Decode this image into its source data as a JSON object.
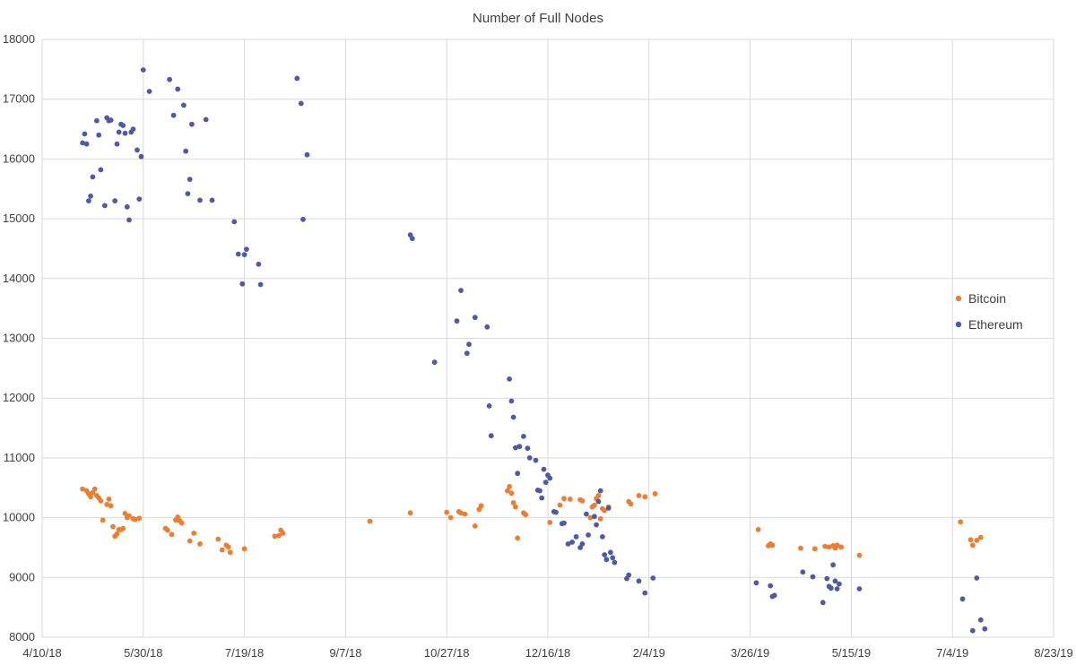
{
  "chart_data": {
    "type": "scatter",
    "title": "Number of Full Nodes",
    "xlabel": "",
    "ylabel": "",
    "x_ticks": [
      "4/10/18",
      "5/30/18",
      "7/19/18",
      "9/7/18",
      "10/27/18",
      "12/16/18",
      "2/4/19",
      "3/26/19",
      "5/15/19",
      "7/4/19",
      "8/23/19"
    ],
    "xlim": [
      "2018-04-10",
      "2019-08-23"
    ],
    "y_ticks": [
      8000,
      9000,
      10000,
      11000,
      12000,
      13000,
      14000,
      15000,
      16000,
      17000,
      18000
    ],
    "ylim": [
      8000,
      18000
    ],
    "grid": true,
    "legend_position": "right",
    "series": [
      {
        "name": "Bitcoin",
        "color": "#ED7D31",
        "points": [
          [
            "2018-04-30",
            10480
          ],
          [
            "2018-05-02",
            10450
          ],
          [
            "2018-05-03",
            10400
          ],
          [
            "2018-05-04",
            10350
          ],
          [
            "2018-05-05",
            10420
          ],
          [
            "2018-05-06",
            10480
          ],
          [
            "2018-05-07",
            10370
          ],
          [
            "2018-05-08",
            10330
          ],
          [
            "2018-05-09",
            10280
          ],
          [
            "2018-05-10",
            9960
          ],
          [
            "2018-05-12",
            10220
          ],
          [
            "2018-05-13",
            10310
          ],
          [
            "2018-05-14",
            10200
          ],
          [
            "2018-05-15",
            9850
          ],
          [
            "2018-05-16",
            9690
          ],
          [
            "2018-05-17",
            9730
          ],
          [
            "2018-05-18",
            9800
          ],
          [
            "2018-05-19",
            9800
          ],
          [
            "2018-05-20",
            9820
          ],
          [
            "2018-05-21",
            10070
          ],
          [
            "2018-05-22",
            10000
          ],
          [
            "2018-05-23",
            10030
          ],
          [
            "2018-05-25",
            9980
          ],
          [
            "2018-05-26",
            9970
          ],
          [
            "2018-05-28",
            9990
          ],
          [
            "2018-06-10",
            9820
          ],
          [
            "2018-06-11",
            9790
          ],
          [
            "2018-06-13",
            9720
          ],
          [
            "2018-06-15",
            9960
          ],
          [
            "2018-06-16",
            10010
          ],
          [
            "2018-06-17",
            9950
          ],
          [
            "2018-06-18",
            9910
          ],
          [
            "2018-06-22",
            9610
          ],
          [
            "2018-06-24",
            9740
          ],
          [
            "2018-06-27",
            9560
          ],
          [
            "2018-07-06",
            9640
          ],
          [
            "2018-07-08",
            9460
          ],
          [
            "2018-07-10",
            9540
          ],
          [
            "2018-07-11",
            9510
          ],
          [
            "2018-07-12",
            9420
          ],
          [
            "2018-07-19",
            9480
          ],
          [
            "2018-08-03",
            9690
          ],
          [
            "2018-08-05",
            9700
          ],
          [
            "2018-08-06",
            9790
          ],
          [
            "2018-08-07",
            9740
          ],
          [
            "2018-09-19",
            9940
          ],
          [
            "2018-10-09",
            10080
          ],
          [
            "2018-10-27",
            10090
          ],
          [
            "2018-10-29",
            10000
          ],
          [
            "2018-11-02",
            10100
          ],
          [
            "2018-11-03",
            10080
          ],
          [
            "2018-11-05",
            10060
          ],
          [
            "2018-11-10",
            9860
          ],
          [
            "2018-11-12",
            10140
          ],
          [
            "2018-11-13",
            10200
          ],
          [
            "2018-11-26",
            10450
          ],
          [
            "2018-11-27",
            10520
          ],
          [
            "2018-11-28",
            10410
          ],
          [
            "2018-11-29",
            10250
          ],
          [
            "2018-11-30",
            10180
          ],
          [
            "2018-12-01",
            9660
          ],
          [
            "2018-12-04",
            10080
          ],
          [
            "2018-12-05",
            10050
          ],
          [
            "2018-12-17",
            9920
          ],
          [
            "2018-12-22",
            10210
          ],
          [
            "2018-12-24",
            10320
          ],
          [
            "2018-12-27",
            10310
          ],
          [
            "2019-01-01",
            10300
          ],
          [
            "2019-01-02",
            10280
          ],
          [
            "2019-01-06",
            10000
          ],
          [
            "2019-01-07",
            10180
          ],
          [
            "2019-01-08",
            10210
          ],
          [
            "2019-01-09",
            10320
          ],
          [
            "2019-01-10",
            10370
          ],
          [
            "2019-01-11",
            9980
          ],
          [
            "2019-01-12",
            10150
          ],
          [
            "2019-01-13",
            10120
          ],
          [
            "2019-01-15",
            10180
          ],
          [
            "2019-01-25",
            10270
          ],
          [
            "2019-01-26",
            10230
          ],
          [
            "2019-01-30",
            10370
          ],
          [
            "2019-02-02",
            10350
          ],
          [
            "2019-02-07",
            10400
          ],
          [
            "2019-03-30",
            9800
          ],
          [
            "2019-04-04",
            9530
          ],
          [
            "2019-04-05",
            9560
          ],
          [
            "2019-04-06",
            9540
          ],
          [
            "2019-04-20",
            9490
          ],
          [
            "2019-04-27",
            9480
          ],
          [
            "2019-05-02",
            9520
          ],
          [
            "2019-05-04",
            9510
          ],
          [
            "2019-05-06",
            9530
          ],
          [
            "2019-05-07",
            9490
          ],
          [
            "2019-05-08",
            9540
          ],
          [
            "2019-05-10",
            9510
          ],
          [
            "2019-05-19",
            9370
          ],
          [
            "2019-07-08",
            9930
          ],
          [
            "2019-07-13",
            9630
          ],
          [
            "2019-07-14",
            9540
          ],
          [
            "2019-07-16",
            9620
          ],
          [
            "2019-07-18",
            9670
          ]
        ]
      },
      {
        "name": "Ethereum",
        "color": "#4E5AA7",
        "points": [
          [
            "2018-04-30",
            16270
          ],
          [
            "2018-05-01",
            16420
          ],
          [
            "2018-05-02",
            16250
          ],
          [
            "2018-05-03",
            15300
          ],
          [
            "2018-05-04",
            15380
          ],
          [
            "2018-05-05",
            15700
          ],
          [
            "2018-05-07",
            16640
          ],
          [
            "2018-05-08",
            16400
          ],
          [
            "2018-05-09",
            15820
          ],
          [
            "2018-05-11",
            15220
          ],
          [
            "2018-05-12",
            16690
          ],
          [
            "2018-05-13",
            16640
          ],
          [
            "2018-05-14",
            16650
          ],
          [
            "2018-05-16",
            15300
          ],
          [
            "2018-05-17",
            16250
          ],
          [
            "2018-05-18",
            16450
          ],
          [
            "2018-05-19",
            16580
          ],
          [
            "2018-05-20",
            16560
          ],
          [
            "2018-05-21",
            16430
          ],
          [
            "2018-05-22",
            15200
          ],
          [
            "2018-05-23",
            14980
          ],
          [
            "2018-05-24",
            16450
          ],
          [
            "2018-05-25",
            16500
          ],
          [
            "2018-05-27",
            16150
          ],
          [
            "2018-05-28",
            15330
          ],
          [
            "2018-05-29",
            16040
          ],
          [
            "2018-05-30",
            17490
          ],
          [
            "2018-06-02",
            17130
          ],
          [
            "2018-06-12",
            17330
          ],
          [
            "2018-06-14",
            16730
          ],
          [
            "2018-06-16",
            17170
          ],
          [
            "2018-06-19",
            16900
          ],
          [
            "2018-06-20",
            16130
          ],
          [
            "2018-06-21",
            15420
          ],
          [
            "2018-06-22",
            15660
          ],
          [
            "2018-06-23",
            16580
          ],
          [
            "2018-06-27",
            15310
          ],
          [
            "2018-06-30",
            16660
          ],
          [
            "2018-07-03",
            15310
          ],
          [
            "2018-07-14",
            14950
          ],
          [
            "2018-07-16",
            14410
          ],
          [
            "2018-07-18",
            13910
          ],
          [
            "2018-07-19",
            14400
          ],
          [
            "2018-07-20",
            14490
          ],
          [
            "2018-07-26",
            14240
          ],
          [
            "2018-07-27",
            13900
          ],
          [
            "2018-08-14",
            17350
          ],
          [
            "2018-08-16",
            16930
          ],
          [
            "2018-08-17",
            14990
          ],
          [
            "2018-08-19",
            16070
          ],
          [
            "2018-10-09",
            14730
          ],
          [
            "2018-10-10",
            14670
          ],
          [
            "2018-10-21",
            12600
          ],
          [
            "2018-11-01",
            13290
          ],
          [
            "2018-11-03",
            13800
          ],
          [
            "2018-11-06",
            12750
          ],
          [
            "2018-11-07",
            12900
          ],
          [
            "2018-11-10",
            13350
          ],
          [
            "2018-11-16",
            13190
          ],
          [
            "2018-11-17",
            11870
          ],
          [
            "2018-11-18",
            11370
          ],
          [
            "2018-11-27",
            12320
          ],
          [
            "2018-11-28",
            11950
          ],
          [
            "2018-11-29",
            11680
          ],
          [
            "2018-11-30",
            11170
          ],
          [
            "2018-12-01",
            10740
          ],
          [
            "2018-12-02",
            11190
          ],
          [
            "2018-12-04",
            11360
          ],
          [
            "2018-12-06",
            11160
          ],
          [
            "2018-12-07",
            11000
          ],
          [
            "2018-12-10",
            10960
          ],
          [
            "2018-12-11",
            10460
          ],
          [
            "2018-12-12",
            10450
          ],
          [
            "2018-12-13",
            10330
          ],
          [
            "2018-12-14",
            10810
          ],
          [
            "2018-12-15",
            10590
          ],
          [
            "2018-12-16",
            10710
          ],
          [
            "2018-12-17",
            10660
          ],
          [
            "2018-12-19",
            10100
          ],
          [
            "2018-12-20",
            10090
          ],
          [
            "2018-12-23",
            9900
          ],
          [
            "2018-12-24",
            9910
          ],
          [
            "2018-12-26",
            9560
          ],
          [
            "2018-12-28",
            9590
          ],
          [
            "2018-12-30",
            9680
          ],
          [
            "2019-01-01",
            9500
          ],
          [
            "2019-01-02",
            9560
          ],
          [
            "2019-01-04",
            10060
          ],
          [
            "2019-01-05",
            9710
          ],
          [
            "2019-01-08",
            10020
          ],
          [
            "2019-01-09",
            9880
          ],
          [
            "2019-01-10",
            10270
          ],
          [
            "2019-01-11",
            10450
          ],
          [
            "2019-01-12",
            9680
          ],
          [
            "2019-01-13",
            9380
          ],
          [
            "2019-01-14",
            9300
          ],
          [
            "2019-01-15",
            10160
          ],
          [
            "2019-01-16",
            9420
          ],
          [
            "2019-01-17",
            9330
          ],
          [
            "2019-01-18",
            9250
          ],
          [
            "2019-01-24",
            8980
          ],
          [
            "2019-01-25",
            9040
          ],
          [
            "2019-01-30",
            8940
          ],
          [
            "2019-02-02",
            8740
          ],
          [
            "2019-02-06",
            8990
          ],
          [
            "2019-03-29",
            8910
          ],
          [
            "2019-04-05",
            8860
          ],
          [
            "2019-04-06",
            8680
          ],
          [
            "2019-04-07",
            8700
          ],
          [
            "2019-04-21",
            9090
          ],
          [
            "2019-04-26",
            9010
          ],
          [
            "2019-05-01",
            8580
          ],
          [
            "2019-05-03",
            8980
          ],
          [
            "2019-05-04",
            8850
          ],
          [
            "2019-05-05",
            8820
          ],
          [
            "2019-05-06",
            9210
          ],
          [
            "2019-05-07",
            8940
          ],
          [
            "2019-05-08",
            8810
          ],
          [
            "2019-05-09",
            8890
          ],
          [
            "2019-05-19",
            8810
          ],
          [
            "2019-07-09",
            8640
          ],
          [
            "2019-07-14",
            8110
          ],
          [
            "2019-07-16",
            8990
          ],
          [
            "2019-07-18",
            8290
          ],
          [
            "2019-07-20",
            8140
          ]
        ]
      }
    ]
  }
}
